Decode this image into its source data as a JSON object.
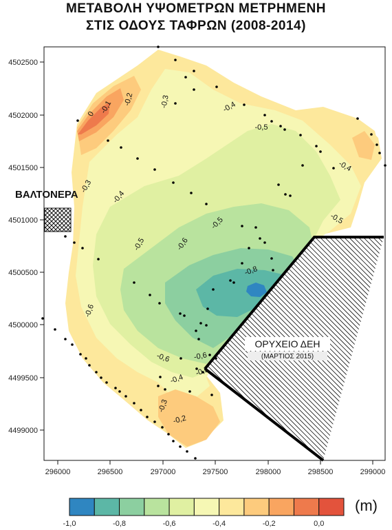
{
  "title": {
    "line1": "ΜΕΤΑΒΟΛΗ ΥΨΟΜΕΤΡΩΝ ΜΕΤΡΗΜΕΝΗ",
    "line2": "ΣΤΙΣ ΟΔΟΥΣ ΤΑΦΡΩΝ (2008-2014)"
  },
  "axes": {
    "y_ticks": [
      "4502500",
      "4502000",
      "4501500",
      "4501000",
      "4500500",
      "4500000",
      "4499500",
      "4499000"
    ],
    "x_ticks": [
      "296000",
      "296500",
      "297000",
      "297500",
      "298000",
      "298500",
      "299000"
    ]
  },
  "labels": {
    "valtonera": "ΒΑΛΤΟΝΕΡΑ",
    "mine": "ΟΡΥΧΕΙΟ ΔΕΗ",
    "mine_date": "(ΜΑΡΤΙΟΣ 2015)"
  },
  "contour_labels": [
    "0",
    "-0,1",
    "-0,2",
    "-0,3",
    "-0,4",
    "-0,5",
    "-0,4",
    "-0,3",
    "-0,4",
    "-0,5",
    "-0,6",
    "-0,5",
    "-0,6",
    "-0,8",
    "-0,5",
    "-0,6",
    "-0,6",
    "-0,5",
    "-0,4",
    "-0,3",
    "-0,2"
  ],
  "legend": {
    "colors": [
      "#2f86c1",
      "#5cb7a6",
      "#8ccfa0",
      "#b9e39e",
      "#e0f0a2",
      "#f6f7b4",
      "#fde89c",
      "#fdcb7d",
      "#f9a560",
      "#ee7a4c",
      "#e3533c"
    ],
    "tick_labels": [
      "-1,0",
      "-0,8",
      "-0,6",
      "-0,4",
      "-0,2",
      "0,0"
    ],
    "unit": "(m)"
  }
}
